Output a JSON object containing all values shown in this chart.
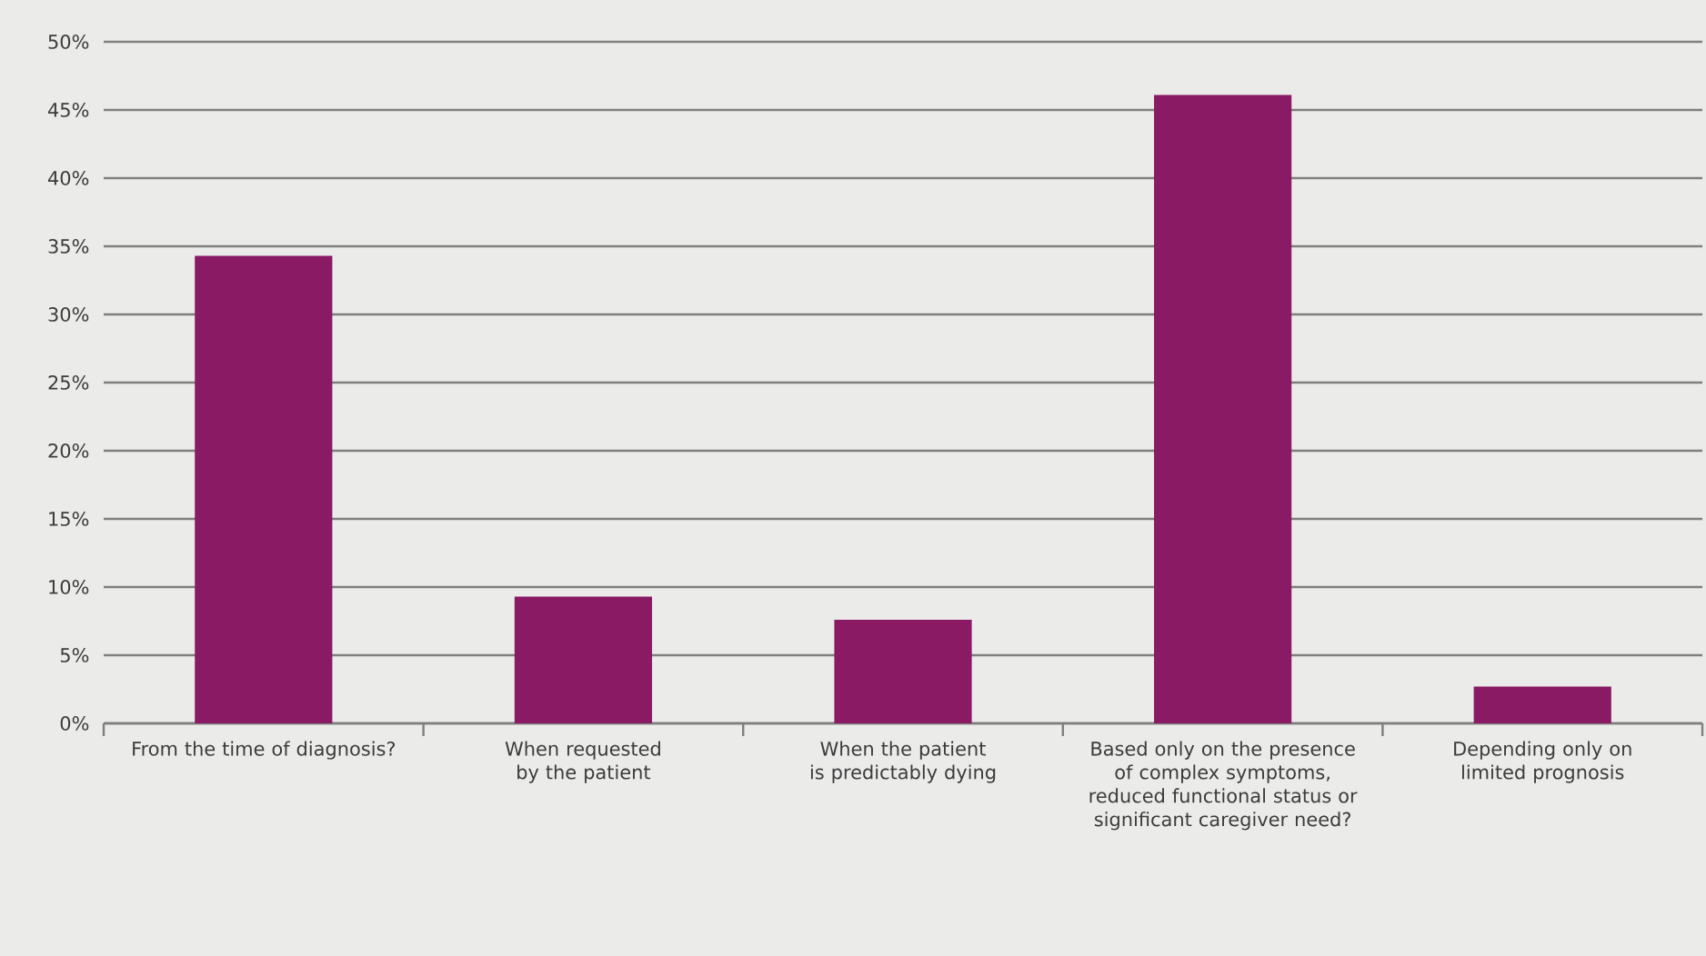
{
  "chart_data": {
    "type": "bar",
    "categories": [
      "From the time of diagnosis?",
      "When requested by the patient",
      "When the patient is predictably dying",
      "Based only on the presence of complex symptoms, reduced functional status or significant caregiver need?",
      "Depending only on limited prognosis"
    ],
    "values": [
      34.3,
      9.3,
      7.6,
      46.1,
      2.7
    ],
    "color": "#8b1a65",
    "ylim": [
      0,
      50
    ],
    "yticks": [
      {
        "value": 0,
        "label": "0%"
      },
      {
        "value": 5,
        "label": "5%"
      },
      {
        "value": 10,
        "label": "10%"
      },
      {
        "value": 15,
        "label": "15%"
      },
      {
        "value": 20,
        "label": "20%"
      },
      {
        "value": 25,
        "label": "25%"
      },
      {
        "value": 30,
        "label": "30%"
      },
      {
        "value": 35,
        "label": "35%"
      },
      {
        "value": 40,
        "label": "40%"
      },
      {
        "value": 45,
        "label": "45%"
      },
      {
        "value": 50,
        "label": "50%"
      }
    ],
    "grid": "y"
  }
}
